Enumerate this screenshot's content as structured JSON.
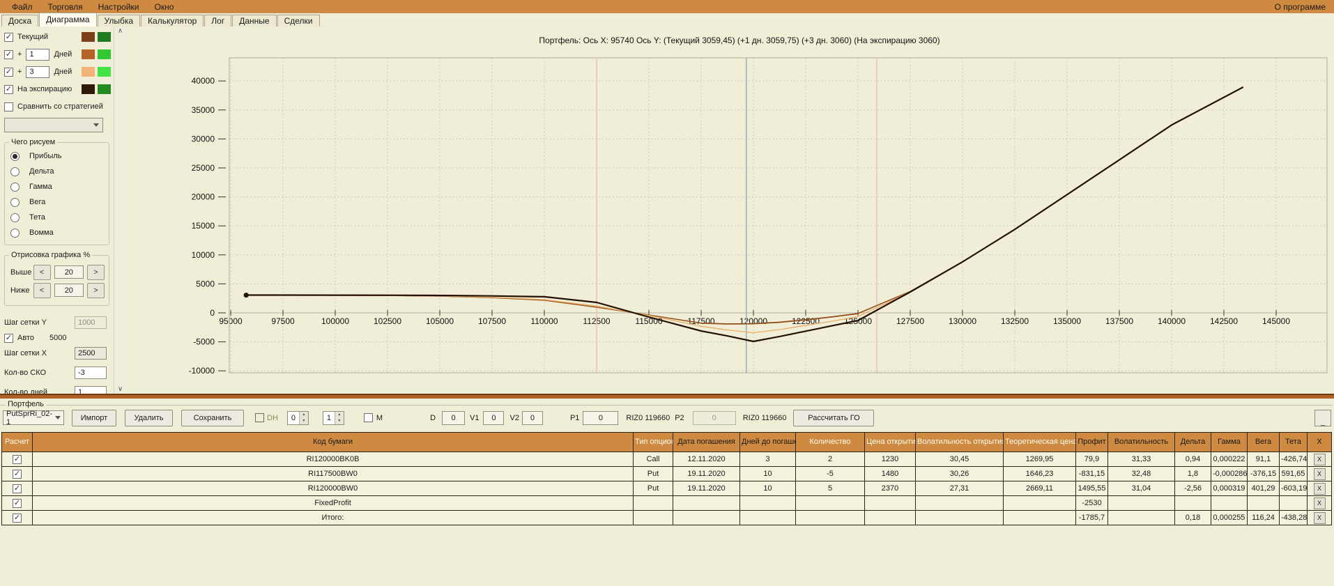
{
  "menu": {
    "items": [
      {
        "name": "menu-file",
        "label": "Файл"
      },
      {
        "name": "menu-trading",
        "label": "Торговля"
      },
      {
        "name": "menu-settings",
        "label": "Настройки"
      },
      {
        "name": "menu-window",
        "label": "Окно"
      }
    ],
    "right": "О программе"
  },
  "tabs": [
    {
      "name": "tab-board",
      "label": "Доска",
      "active": false
    },
    {
      "name": "tab-diagram",
      "label": "Диаграмма",
      "active": true
    },
    {
      "name": "tab-smile",
      "label": "Улыбка",
      "active": false
    },
    {
      "name": "tab-calculator",
      "label": "Калькулятор",
      "active": false
    },
    {
      "name": "tab-log",
      "label": "Лог",
      "active": false
    },
    {
      "name": "tab-data",
      "label": "Данные",
      "active": false
    },
    {
      "name": "tab-trades",
      "label": "Сделки",
      "active": false
    }
  ],
  "sidebar": {
    "series_toggles": [
      {
        "name": "toggle-current",
        "checked": true,
        "label": "Текущий",
        "colors": [
          "#7B3F19",
          "#1E7C1E"
        ]
      },
      {
        "name": "toggle-plus1",
        "checked": true,
        "pre": "+",
        "input": "1",
        "label": "Дней",
        "colors": [
          "#B66327",
          "#32C832"
        ]
      },
      {
        "name": "toggle-plus3",
        "checked": true,
        "pre": "+",
        "input": "3",
        "label": "Дней",
        "colors": [
          "#F2B377",
          "#44E344"
        ]
      },
      {
        "name": "toggle-expiration",
        "checked": true,
        "label": "На экспирацию",
        "colors": [
          "#2E1806",
          "#218A21"
        ]
      },
      {
        "name": "toggle-compare-strategy",
        "checked": false,
        "label": "Сравнить со стратегией",
        "colors": []
      }
    ],
    "strategy_select_value": "",
    "draw_group": {
      "title": "Чего рисуем",
      "options": [
        "Прибыль",
        "Дельта",
        "Гамма",
        "Вега",
        "Тета",
        "Вомма"
      ],
      "selected": "Прибыль"
    },
    "range_group": {
      "title": "Отрисовка графика %",
      "rows": [
        {
          "name": "above",
          "label": "Выше",
          "value": "20"
        },
        {
          "name": "below",
          "label": "Ниже",
          "value": "20"
        }
      ],
      "dec_label": "<",
      "inc_label": ">"
    },
    "grid_settings": {
      "step_y_label": "Шаг сетки Y",
      "step_y_value": "1000",
      "auto_label": "Авто",
      "auto_checked": true,
      "auto_value": "5000",
      "step_x_label": "Шаг сетки X",
      "step_x_value": "2500",
      "sko_label": "Кол-во СКО",
      "sko_value": "-3",
      "days_label": "Кол-во дней",
      "days_value": "1"
    }
  },
  "chart_data": {
    "type": "line",
    "title": "Портфель: Ось X: 95740 Ось Y:  (Текущий 3059,45)  (+1 дн. 3059,75)  (+3 дн. 3060)  (На экспирацию 3060)",
    "axis": {
      "xmin": 95000,
      "xmax": 145000,
      "xstep": 2500,
      "ymin": -10000,
      "ymax": 40000,
      "ystep": 5000
    },
    "grid": true,
    "legend_position": "none",
    "vertical_lines": [
      {
        "x": 112500,
        "color": "#ECC0BC"
      },
      {
        "x": 119660,
        "color": "#97A7B4"
      },
      {
        "x": 125900,
        "color": "#ECC0BC"
      }
    ],
    "start_dot": {
      "x": 95740,
      "y": 3059,
      "color": "#2A1503"
    },
    "x": [
      95740,
      97500,
      100000,
      102500,
      105000,
      107500,
      110000,
      112500,
      115000,
      117500,
      118750,
      120000,
      121250,
      122500,
      123750,
      125000,
      127500,
      130000,
      132500,
      135000,
      137500,
      140000,
      143400
    ],
    "series": [
      {
        "name": "Текущий",
        "color": "#70350F",
        "width": 1.3,
        "values": [
          3059,
          3052,
          3032,
          2984,
          2872,
          2624,
          2160,
          960,
          -360,
          -1750,
          -1900,
          -1850,
          -1600,
          -1180,
          -680,
          -100,
          3700,
          8800,
          14400,
          20400,
          26400,
          32400,
          38900
        ]
      },
      {
        "name": "+1 Дней",
        "color": "#A55A1E",
        "width": 1.1,
        "values": [
          3060,
          3053,
          3034,
          2986,
          2876,
          2632,
          2175,
          990,
          -380,
          -1810,
          -1965,
          -1915,
          -1665,
          -1245,
          -745,
          -165,
          3680,
          8790,
          14390,
          20395,
          26395,
          32395,
          38895
        ]
      },
      {
        "name": "+3 Дней",
        "color": "#E9AC66",
        "width": 1.3,
        "values": [
          3060,
          3056,
          3040,
          2998,
          2902,
          2686,
          2280,
          1160,
          -460,
          -2320,
          -2950,
          -3420,
          -2880,
          -2160,
          -1440,
          -640,
          3640,
          8770,
          14380,
          20385,
          26390,
          32390,
          38890
        ]
      },
      {
        "name": "На экспирацию",
        "color": "#241103",
        "width": 2.2,
        "values": [
          3060,
          3059,
          3054,
          3040,
          3002,
          2920,
          2780,
          1800,
          -720,
          -3130,
          -3980,
          -4930,
          -4070,
          -3160,
          -2240,
          -1320,
          3600,
          8800,
          14400,
          20400,
          26400,
          32400,
          38900
        ]
      }
    ]
  },
  "portfolio": {
    "group_label": "Портфель",
    "preset_value": "PutSprRi_02-1",
    "buttons": [
      {
        "name": "import-button",
        "label": "Импорт"
      },
      {
        "name": "delete-button",
        "label": "Удалить"
      },
      {
        "name": "save-button",
        "label": "Сохранить"
      }
    ],
    "dh": {
      "label": "DH",
      "checked": false,
      "spin1": "0",
      "spin2": "1"
    },
    "m": {
      "label": "M",
      "checked": false
    },
    "d_field": {
      "label": "D",
      "value": "0"
    },
    "v1_field": {
      "label": "V1",
      "value": "0"
    },
    "v2_field": {
      "label": "V2",
      "value": "0"
    },
    "p1_field": {
      "label": "P1",
      "value": "0"
    },
    "riz0_label_1": "RIZ0 119660",
    "p2_field": {
      "label": "P2",
      "value": "0",
      "disabled": true
    },
    "riz0_label_2": "RIZ0 119660",
    "calc_button": "Рассчитать ГО",
    "minimize_button": "_"
  },
  "table": {
    "columns": [
      {
        "label": "Расчет",
        "light": true
      },
      {
        "label": "Код бумаги",
        "light": false
      },
      {
        "label": "Тип опциона",
        "light": true
      },
      {
        "label": "Дата погашения",
        "light": false
      },
      {
        "label": "Дней до погашения",
        "light": false
      },
      {
        "label": "Количество",
        "light": true
      },
      {
        "label": "Цена открытия",
        "light": true
      },
      {
        "label": "Волатильность открытия",
        "light": true
      },
      {
        "label": "Теоретическая цена",
        "light": true
      },
      {
        "label": "Профит",
        "light": false
      },
      {
        "label": "Волатильность",
        "light": false
      },
      {
        "label": "Дельта",
        "light": false
      },
      {
        "label": "Гамма",
        "light": false
      },
      {
        "label": "Вега",
        "light": false
      },
      {
        "label": "Тета",
        "light": false
      },
      {
        "label": "X",
        "light": false
      }
    ],
    "rows": [
      {
        "checked": true,
        "selected": true,
        "code": "RI120000BK0B",
        "type": "Call",
        "expiry": "12.11.2020",
        "days": "3",
        "qty": "2",
        "open_price": "1230",
        "open_vol": "30,45",
        "theo": "1269,95",
        "profit": "79,9",
        "profit_color": "green",
        "vol": "31,33",
        "delta": "0,94",
        "gamma": "0,000222",
        "vega": "91,1",
        "theta": "-426,74",
        "x_label": "X"
      },
      {
        "checked": true,
        "selected": false,
        "code": "RI117500BW0",
        "type": "Put",
        "expiry": "19.11.2020",
        "days": "10",
        "qty": "-5",
        "open_price": "1480",
        "open_vol": "30,26",
        "theo": "1646,23",
        "profit": "-831,15",
        "profit_color": "pink",
        "vol": "32,48",
        "delta": "1,8",
        "gamma": "-0,000286",
        "vega": "-376,15",
        "theta": "591,65",
        "x_label": "X"
      },
      {
        "checked": true,
        "selected": false,
        "code": "RI120000BW0",
        "type": "Put",
        "expiry": "19.11.2020",
        "days": "10",
        "qty": "5",
        "open_price": "2370",
        "open_vol": "27,31",
        "theo": "2669,11",
        "profit": "1495,55",
        "profit_color": "green",
        "vol": "31,04",
        "delta": "-2,56",
        "gamma": "0,000319",
        "vega": "401,29",
        "theta": "-603,19",
        "x_label": "X"
      },
      {
        "checked": true,
        "selected": false,
        "code": "FixedProfit",
        "type": "",
        "expiry": "",
        "days": "",
        "qty": "",
        "open_price": "",
        "open_vol": "",
        "theo": "",
        "profit": "-2530",
        "profit_color": "pink",
        "vol": "",
        "delta": "",
        "gamma": "",
        "vega": "",
        "theta": "",
        "x_label": "X"
      },
      {
        "checked": true,
        "selected": false,
        "code": "Итого:",
        "type": "",
        "expiry": "",
        "days": "",
        "qty": "",
        "open_price": "",
        "open_vol": "",
        "theo": "",
        "profit": "-1785,7",
        "profit_color": "pink",
        "vol": "",
        "delta": "0,18",
        "gamma": "0,000255",
        "vega": "116,24",
        "theta": "-438,28",
        "x_label": "X"
      }
    ]
  }
}
